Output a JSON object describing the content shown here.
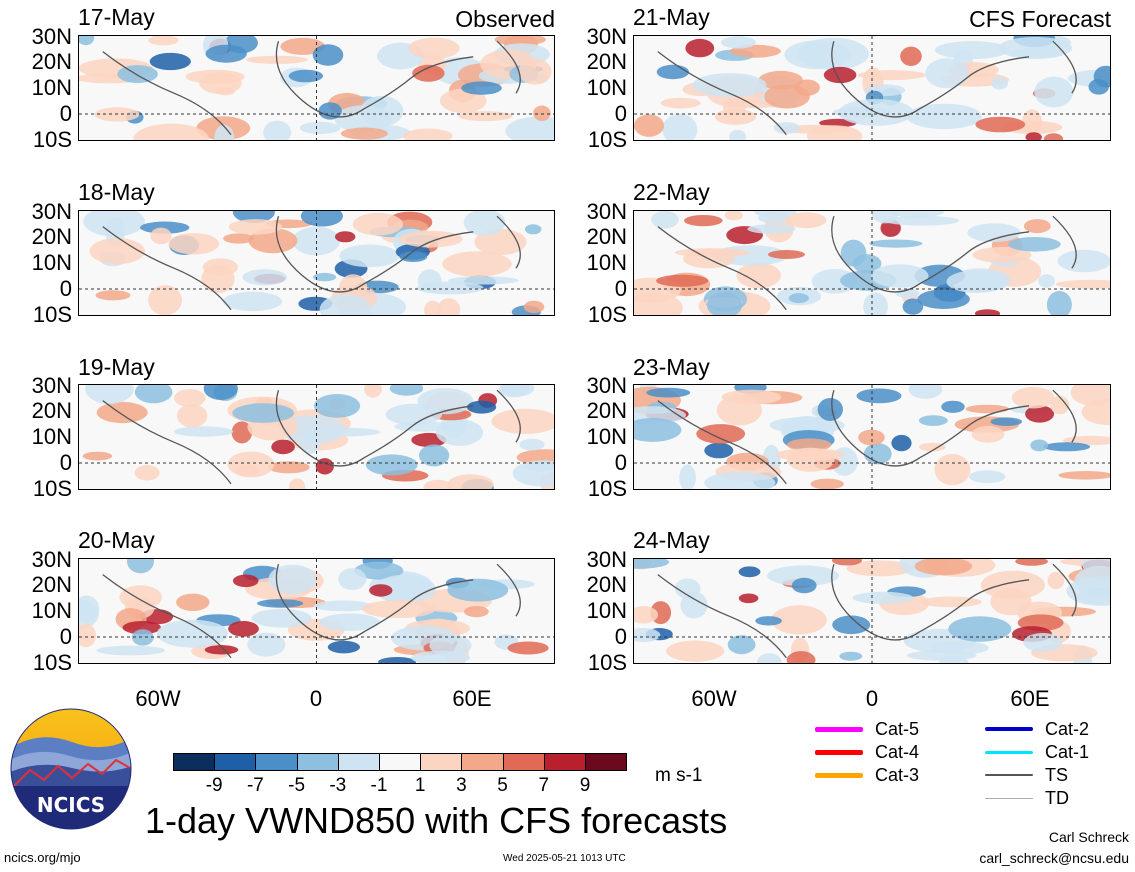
{
  "header": {
    "observed_label": "Observed",
    "forecast_label": "CFS Forecast"
  },
  "observed_panels": [
    {
      "date": "17-May"
    },
    {
      "date": "18-May"
    },
    {
      "date": "19-May"
    },
    {
      "date": "20-May"
    }
  ],
  "forecast_panels": [
    {
      "date": "21-May"
    },
    {
      "date": "22-May"
    },
    {
      "date": "23-May"
    },
    {
      "date": "24-May"
    }
  ],
  "latitude_labels": [
    "30N",
    "20N",
    "10N",
    "0",
    "10S"
  ],
  "longitude_labels": [
    "60W",
    "0",
    "60E"
  ],
  "colorbar": {
    "ticks": [
      "-9",
      "-7",
      "-5",
      "-3",
      "-1",
      "1",
      "3",
      "5",
      "7",
      "9"
    ],
    "colors": [
      "#0a2f5c",
      "#1f5fa8",
      "#4a8fc8",
      "#8dbfe0",
      "#cfe4f2",
      "#f8f8f8",
      "#fbd5c2",
      "#f3a88a",
      "#e06a55",
      "#b8202e",
      "#6b0a1e"
    ],
    "units": "m s-1"
  },
  "storm_legend": [
    {
      "label": "Cat-5",
      "color": "#ff00ff",
      "width": 5
    },
    {
      "label": "Cat-4",
      "color": "#ff0000",
      "width": 5
    },
    {
      "label": "Cat-3",
      "color": "#ffa500",
      "width": 5
    },
    {
      "label": "Cat-2",
      "color": "#0000cc",
      "width": 4
    },
    {
      "label": "Cat-1",
      "color": "#00e5ff",
      "width": 3
    },
    {
      "label": "TS",
      "color": "#555555",
      "width": 2
    },
    {
      "label": "TD",
      "color": "#aaaaaa",
      "width": 1
    }
  ],
  "logo": {
    "text": "NCICS"
  },
  "main_title": "1-day VWND850 with CFS forecasts",
  "footer": {
    "url": "ncics.org/mjo",
    "timestamp": "Wed 2025-05-21 1013 UTC",
    "author": "Carl Schreck",
    "email": "carl_schreck@ncsu.edu"
  }
}
